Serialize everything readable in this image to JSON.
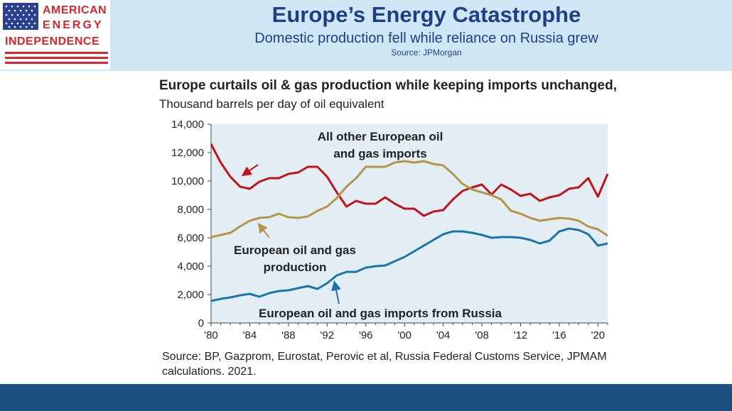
{
  "header": {
    "logo_line1": "AMERICAN",
    "logo_line2": "ENERGY",
    "logo_line3": "INDEPENDENCE",
    "title": "Europe’s Energy Catastrophe",
    "subtitle": "Domestic production fell while reliance on Russia grew",
    "source": "Source: JPMorgan"
  },
  "chart_heading": {
    "bold": "Europe curtails oil & gas production while keeping imports unchanged,",
    "normal": "Thousand barrels per day of oil equivalent"
  },
  "footer_source": "Source: BP, Gazprom, Eurostat, Perovic et al, Russia Federal Customs Service, JPMAM calculations. 2021.",
  "colors": {
    "header_bg": "#cfe6f5",
    "title": "#1f3f85",
    "plot_bg": "#e2eef4",
    "footer_bar": "#1d4f7e",
    "imports_other": "#c0141c",
    "production": "#b5954a",
    "russia": "#1b75aa",
    "logo_red": "#d7262d"
  },
  "chart_data": {
    "type": "line",
    "x_ticks": [
      "'80",
      "'84",
      "'88",
      "'92",
      "'96",
      "'00",
      "'04",
      "'08",
      "'12",
      "'16",
      "'20"
    ],
    "y_ticks": [
      "0",
      "2,000",
      "4,000",
      "6,000",
      "8,000",
      "10,000",
      "12,000",
      "14,000"
    ],
    "xlim": [
      1980,
      2021
    ],
    "ylim": [
      0,
      14000
    ],
    "grid": false,
    "x": [
      1980,
      1981,
      1982,
      1983,
      1984,
      1985,
      1986,
      1987,
      1988,
      1989,
      1990,
      1991,
      1992,
      1993,
      1994,
      1995,
      1996,
      1997,
      1998,
      1999,
      2000,
      2001,
      2002,
      2003,
      2004,
      2005,
      2006,
      2007,
      2008,
      2009,
      2010,
      2011,
      2012,
      2013,
      2014,
      2015,
      2016,
      2017,
      2018,
      2019,
      2020,
      2021
    ],
    "series": [
      {
        "name": "All other European oil and gas imports",
        "label_line1": "All other European oil",
        "label_line2": "and gas imports",
        "values": [
          12600,
          11300,
          10300,
          9600,
          9450,
          9950,
          10200,
          10200,
          10500,
          10600,
          11000,
          11000,
          10300,
          9200,
          8200,
          8600,
          8400,
          8400,
          8850,
          8400,
          8050,
          8050,
          7550,
          7850,
          7950,
          8700,
          9300,
          9550,
          9750,
          9050,
          9750,
          9400,
          8950,
          9100,
          8600,
          8850,
          9000,
          9450,
          9550,
          10200,
          8900,
          10500
        ]
      },
      {
        "name": "European oil and gas production",
        "label_line1": "European oil and gas",
        "label_line2": "production",
        "values": [
          6050,
          6200,
          6350,
          6800,
          7200,
          7400,
          7450,
          7700,
          7450,
          7400,
          7500,
          7900,
          8200,
          8800,
          9600,
          10200,
          11000,
          11000,
          11000,
          11300,
          11400,
          11300,
          11400,
          11200,
          11100,
          10500,
          9800,
          9400,
          9200,
          9000,
          8700,
          7900,
          7700,
          7400,
          7200,
          7300,
          7400,
          7350,
          7200,
          6800,
          6600,
          6150
        ]
      },
      {
        "name": "European oil and gas imports from Russia",
        "label_line1": "European oil and gas imports from Russia",
        "values": [
          1550,
          1700,
          1800,
          1950,
          2050,
          1850,
          2100,
          2250,
          2300,
          2450,
          2600,
          2400,
          2800,
          3350,
          3600,
          3600,
          3900,
          4000,
          4050,
          4350,
          4650,
          5050,
          5450,
          5850,
          6250,
          6450,
          6450,
          6350,
          6200,
          6000,
          6050,
          6050,
          6000,
          5850,
          5600,
          5800,
          6450,
          6650,
          6550,
          6250,
          5450,
          5600
        ]
      }
    ]
  }
}
